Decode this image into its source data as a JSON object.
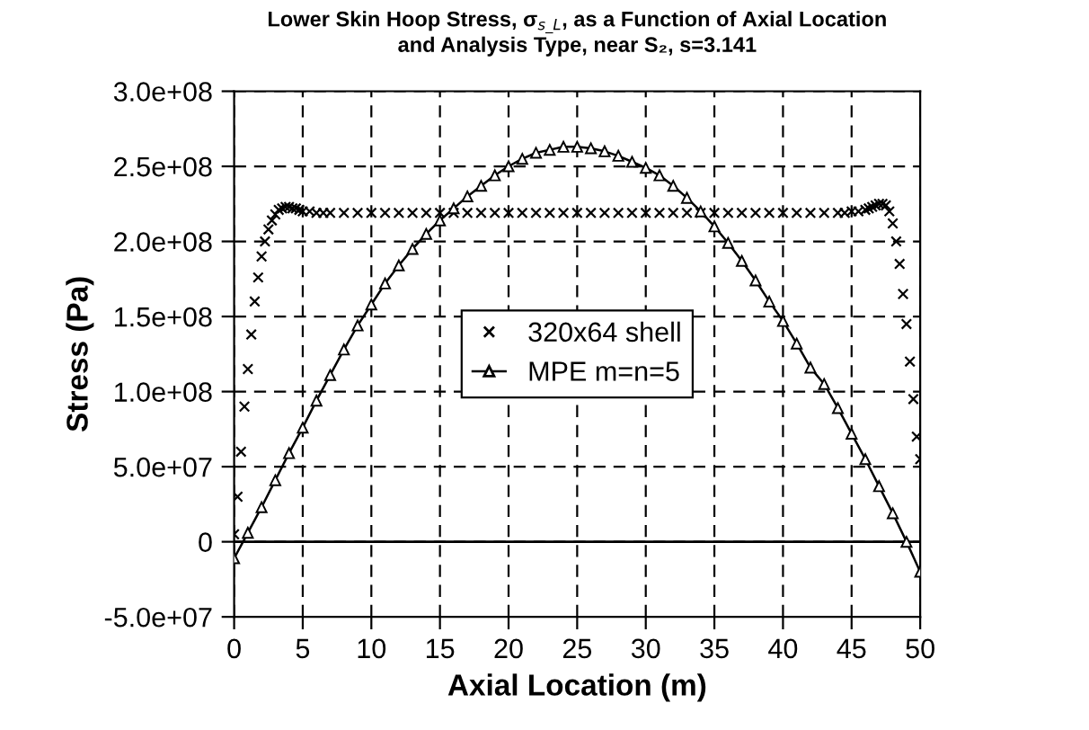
{
  "chart_data": {
    "type": "scatter",
    "title": "Lower Skin Hoop Stress, σ$_{s_L}$, as a Function of Axial Location\nand Analysis Type, near S₂, s=3.141",
    "xlabel": "Axial Location (m)",
    "ylabel": "Stress (Pa)",
    "xlim": [
      0,
      50
    ],
    "xticks": [
      0,
      5,
      10,
      15,
      20,
      25,
      30,
      35,
      40,
      45,
      50
    ],
    "ylim": [
      -50000000,
      300000000
    ],
    "yticks": [
      {
        "value": -50000000,
        "label": "-5.0e+07"
      },
      0,
      {
        "value": 50000000,
        "label": "5.0e+07"
      },
      {
        "value": 100000000,
        "label": "1.0e+08"
      },
      {
        "value": 150000000,
        "label": "1.5e+08"
      },
      {
        "value": 200000000,
        "label": "2.0e+08"
      },
      {
        "value": 250000000,
        "label": "2.5e+08"
      },
      {
        "value": 300000000,
        "label": "3.0e+08"
      }
    ],
    "grid": true,
    "legend": "center",
    "series": [
      {
        "name": "320x64 shell",
        "marker": "cross",
        "color": "#000000",
        "x": [
          0,
          0.25,
          0.5,
          0.75,
          1,
          1.25,
          1.5,
          1.75,
          2,
          2.25,
          2.5,
          2.75,
          3,
          3.25,
          3.5,
          3.75,
          4,
          4.25,
          4.5,
          4.75,
          5,
          5.5,
          6,
          6.5,
          7,
          8,
          9,
          10,
          11,
          12,
          13,
          14,
          15,
          16,
          17,
          18,
          19,
          20,
          21,
          22,
          23,
          24,
          25,
          26,
          27,
          28,
          29,
          30,
          31,
          32,
          33,
          34,
          35,
          36,
          37,
          38,
          39,
          40,
          41,
          42,
          43,
          44,
          44.5,
          45,
          45.5,
          46,
          46.25,
          46.5,
          46.75,
          47,
          47.25,
          47.5,
          47.75,
          48,
          48.25,
          48.5,
          48.75,
          49,
          49.25,
          49.5,
          49.75,
          50
        ],
        "values": [
          5000000,
          30000000,
          60000000,
          90000000,
          115000000,
          138000000,
          160000000,
          176000000,
          190000000,
          200000000,
          208000000,
          214000000,
          218000000,
          221000000,
          222000000,
          223000000,
          223000000,
          222000000,
          222000000,
          221000000,
          220000000,
          220000000,
          219000000,
          219000000,
          219000000,
          219000000,
          219000000,
          219000000,
          219000000,
          219000000,
          219000000,
          219000000,
          219000000,
          219000000,
          219000000,
          219000000,
          219000000,
          219000000,
          219000000,
          219000000,
          219000000,
          219000000,
          219000000,
          219000000,
          219000000,
          219000000,
          219000000,
          219000000,
          219000000,
          219000000,
          219000000,
          219000000,
          219000000,
          219000000,
          219000000,
          219000000,
          219000000,
          219000000,
          219000000,
          219000000,
          219000000,
          219000000,
          219000000,
          220000000,
          220000000,
          221000000,
          222000000,
          223000000,
          224000000,
          225000000,
          225000000,
          224000000,
          220000000,
          212000000,
          200000000,
          185000000,
          165000000,
          145000000,
          120000000,
          95000000,
          70000000,
          55000000
        ]
      },
      {
        "name": "MPE m=n=5",
        "type": "line",
        "marker": "triangle",
        "color": "#000000",
        "x": [
          0,
          1,
          2,
          3,
          4,
          5,
          6,
          7,
          8,
          9,
          10,
          11,
          12,
          13,
          14,
          15,
          16,
          17,
          18,
          19,
          20,
          21,
          22,
          23,
          24,
          25,
          26,
          27,
          28,
          29,
          30,
          31,
          32,
          33,
          34,
          35,
          36,
          37,
          38,
          39,
          40,
          41,
          42,
          43,
          44,
          45,
          46,
          47,
          48,
          49,
          50
        ],
        "values": [
          -11000000,
          6000000,
          23000000,
          41000000,
          59000000,
          76000000,
          94000000,
          111000000,
          128000000,
          144000000,
          158000000,
          172000000,
          184000000,
          195000000,
          205000000,
          214000000,
          222000000,
          230000000,
          237000000,
          244000000,
          250000000,
          255000000,
          259000000,
          261000000,
          263000000,
          263000000,
          262000000,
          260000000,
          257000000,
          253000000,
          249000000,
          244000000,
          237000000,
          229000000,
          220000000,
          210000000,
          199000000,
          187000000,
          174000000,
          160000000,
          147000000,
          132000000,
          116000000,
          105000000,
          89000000,
          72000000,
          55000000,
          37000000,
          19000000,
          0,
          -20000000
        ]
      }
    ]
  }
}
